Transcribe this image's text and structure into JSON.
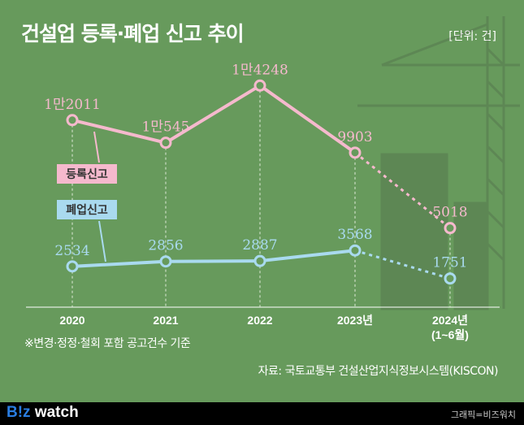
{
  "header": {
    "title": "건설업 등록·폐업 신고 추이",
    "unit": "[단위: 건]"
  },
  "chart_data": {
    "type": "line",
    "title": "건설업 등록·폐업 신고 추이",
    "categories": [
      "2020",
      "2021",
      "2022",
      "2023년",
      "2024년 (1~6월)"
    ],
    "series": [
      {
        "name": "등록신고",
        "values": [
          12011,
          10545,
          14248,
          9903,
          5018
        ],
        "labels": [
          "1만2011",
          "1만545",
          "1만4248",
          "9903",
          "5018"
        ],
        "color": "#f5b9cd",
        "dashed_last_segment": true
      },
      {
        "name": "폐업신고",
        "values": [
          2534,
          2856,
          2887,
          3568,
          1751
        ],
        "labels": [
          "2534",
          "2856",
          "2887",
          "3568",
          "1751"
        ],
        "color": "#a9daef",
        "dashed_last_segment": true
      }
    ],
    "ylim": [
      0,
      15000
    ],
    "grid": "vertical dashed guides"
  },
  "xtick_sub": "(1~6월)",
  "note": "※변경·정정·철회 포함 공고건수 기준",
  "source": "자료: 국토교통부 건설산업지식정보시스템(KISCON)",
  "footer": {
    "logo_b": "B!z",
    "logo_rest": " watch",
    "credit": "그래픽=비즈워치"
  },
  "colors": {
    "background": "#679a5c",
    "pink": "#f5b9cd",
    "blue": "#a9daef"
  }
}
